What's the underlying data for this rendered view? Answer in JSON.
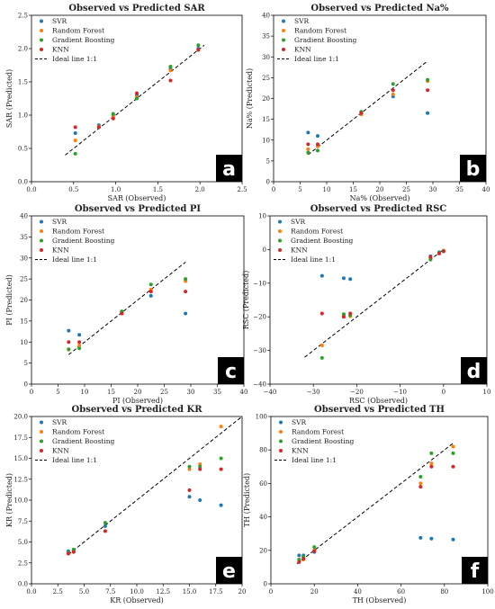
{
  "colors": {
    "SVR": "#1f77b4",
    "Random Forest": "#ff7f0e",
    "Gradient Boosting": "#2ca02c",
    "KNN": "#d62728",
    "ideal": "#000000",
    "panel_label_bg": "#000000"
  },
  "legend": {
    "placement": "top-left",
    "entries": [
      "SVR",
      "Random Forest",
      "Gradient Boosting",
      "KNN",
      "Ideal line 1:1"
    ]
  },
  "chart_data": [
    {
      "type": "scatter",
      "panel": "a",
      "title": "Observed vs Predicted SAR",
      "xlabel": "SAR (Observed)",
      "ylabel": "SAR (Predicted)",
      "xlim": [
        0.0,
        2.5
      ],
      "ylim": [
        0.0,
        2.5
      ],
      "xticks": [
        "0.0",
        "0.5",
        "1.0",
        "1.5",
        "2.0",
        "2.5"
      ],
      "yticks": [
        "0.0",
        "0.5",
        "1.0",
        "1.5",
        "2.0",
        "2.5"
      ],
      "ideal_line": [
        [
          0.4,
          0.4
        ],
        [
          2.05,
          2.05
        ]
      ],
      "grid": false,
      "series": [
        {
          "name": "SVR",
          "points": [
            [
              0.52,
              0.73
            ],
            [
              0.8,
              0.85
            ],
            [
              0.97,
              1.0
            ],
            [
              1.25,
              1.3
            ],
            [
              1.65,
              1.7
            ],
            [
              1.98,
              2.0
            ]
          ]
        },
        {
          "name": "Random Forest",
          "points": [
            [
              0.52,
              0.62
            ],
            [
              0.8,
              0.83
            ],
            [
              0.97,
              0.97
            ],
            [
              1.25,
              1.27
            ],
            [
              1.65,
              1.67
            ],
            [
              1.98,
              1.98
            ]
          ]
        },
        {
          "name": "Gradient Boosting",
          "points": [
            [
              0.52,
              0.42
            ],
            [
              0.8,
              0.82
            ],
            [
              0.97,
              1.02
            ],
            [
              1.25,
              1.25
            ],
            [
              1.65,
              1.73
            ],
            [
              1.98,
              2.05
            ]
          ]
        },
        {
          "name": "KNN",
          "points": [
            [
              0.52,
              0.82
            ],
            [
              0.8,
              0.82
            ],
            [
              0.97,
              0.95
            ],
            [
              1.25,
              1.33
            ],
            [
              1.65,
              1.52
            ],
            [
              1.98,
              1.98
            ]
          ]
        }
      ]
    },
    {
      "type": "scatter",
      "panel": "b",
      "title": "Observed vs Predicted Na%",
      "xlabel": "Na% (Observed)",
      "ylabel": "Na% (Predicted)",
      "xlim": [
        0,
        40
      ],
      "ylim": [
        0,
        40
      ],
      "xticks": [
        "0",
        "5",
        "10",
        "15",
        "20",
        "25",
        "30",
        "35",
        "40"
      ],
      "yticks": [
        "0",
        "5",
        "10",
        "15",
        "20",
        "25",
        "30",
        "35",
        "40"
      ],
      "ideal_line": [
        [
          6.5,
          6.5
        ],
        [
          29,
          29
        ]
      ],
      "grid": false,
      "series": [
        {
          "name": "SVR",
          "points": [
            [
              6.5,
              11.8
            ],
            [
              8.3,
              11.0
            ],
            [
              16.5,
              16.7
            ],
            [
              22.5,
              20.5
            ],
            [
              29,
              16.5
            ]
          ]
        },
        {
          "name": "Random Forest",
          "points": [
            [
              6.5,
              7.8
            ],
            [
              8.3,
              8.5
            ],
            [
              16.5,
              16.2
            ],
            [
              22.5,
              21.0
            ],
            [
              29,
              24.2
            ]
          ]
        },
        {
          "name": "Gradient Boosting",
          "points": [
            [
              6.5,
              7.0
            ],
            [
              8.3,
              7.5
            ],
            [
              16.5,
              16.8
            ],
            [
              22.5,
              23.5
            ],
            [
              29,
              24.5
            ]
          ]
        },
        {
          "name": "KNN",
          "points": [
            [
              6.5,
              9.0
            ],
            [
              8.3,
              9.0
            ],
            [
              16.5,
              16.5
            ],
            [
              22.5,
              22.0
            ],
            [
              29,
              22.0
            ]
          ]
        }
      ]
    },
    {
      "type": "scatter",
      "panel": "c",
      "title": "Observed vs Predicted PI",
      "xlabel": "PI (Observed)",
      "ylabel": "PI (Predicted)",
      "xlim": [
        0,
        40
      ],
      "ylim": [
        0,
        40
      ],
      "xticks": [
        "0",
        "5",
        "10",
        "15",
        "20",
        "25",
        "30",
        "35",
        "40"
      ],
      "yticks": [
        "0",
        "5",
        "10",
        "15",
        "20",
        "25",
        "30",
        "35",
        "40"
      ],
      "ideal_line": [
        [
          7,
          7
        ],
        [
          29,
          29
        ]
      ],
      "grid": false,
      "series": [
        {
          "name": "SVR",
          "points": [
            [
              7,
              12.7
            ],
            [
              9,
              11.7
            ],
            [
              17,
              17.0
            ],
            [
              22.5,
              21.0
            ],
            [
              29,
              16.8
            ]
          ]
        },
        {
          "name": "Random Forest",
          "points": [
            [
              7,
              8.2
            ],
            [
              9,
              9.2
            ],
            [
              17,
              16.8
            ],
            [
              22.5,
              22.5
            ],
            [
              29,
              24.5
            ]
          ]
        },
        {
          "name": "Gradient Boosting",
          "points": [
            [
              7,
              8.3
            ],
            [
              9,
              8.5
            ],
            [
              17,
              17.3
            ],
            [
              22.5,
              23.7
            ],
            [
              29,
              25.0
            ]
          ]
        },
        {
          "name": "KNN",
          "points": [
            [
              7,
              10.0
            ],
            [
              9,
              10.0
            ],
            [
              17,
              16.8
            ],
            [
              22.5,
              22.0
            ],
            [
              29,
              22.0
            ]
          ]
        }
      ]
    },
    {
      "type": "scatter",
      "panel": "d",
      "title": "Observed vs Predicted RSC",
      "xlabel": "RSC (Observed)",
      "ylabel": "RSC (Predicted)",
      "xlim": [
        -40,
        10
      ],
      "ylim": [
        -40,
        10
      ],
      "xticks": [
        "−40",
        "−30",
        "−20",
        "−10",
        "0",
        "10"
      ],
      "yticks": [
        "−40",
        "−30",
        "−20",
        "−10",
        "0",
        "10"
      ],
      "ideal_line": [
        [
          -32,
          -32
        ],
        [
          0,
          0
        ]
      ],
      "grid": false,
      "series": [
        {
          "name": "SVR",
          "points": [
            [
              -28,
              -7.8
            ],
            [
              -23,
              -8.5
            ],
            [
              -21.5,
              -8.8
            ],
            [
              -3,
              -2.0
            ],
            [
              -1,
              -0.8
            ],
            [
              0,
              -0.5
            ]
          ]
        },
        {
          "name": "Random Forest",
          "points": [
            [
              -28,
              -28.5
            ],
            [
              -23,
              -19.5
            ],
            [
              -21.5,
              -19.8
            ],
            [
              -3,
              -2.5
            ],
            [
              -1,
              -1.0
            ],
            [
              0,
              -0.3
            ]
          ]
        },
        {
          "name": "Gradient Boosting",
          "points": [
            [
              -28,
              -32.2
            ],
            [
              -23,
              -19.2
            ],
            [
              -21.5,
              -19.5
            ],
            [
              -3,
              -3.0
            ],
            [
              -1,
              -1.0
            ],
            [
              0,
              -0.5
            ]
          ]
        },
        {
          "name": "KNN",
          "points": [
            [
              -28,
              -19.0
            ],
            [
              -23,
              -20.0
            ],
            [
              -21.5,
              -19.0
            ],
            [
              -3,
              -2.2
            ],
            [
              -1,
              -1.2
            ],
            [
              0,
              -0.5
            ]
          ]
        }
      ]
    },
    {
      "type": "scatter",
      "panel": "e",
      "title": "Observed vs Predicted KR",
      "xlabel": "KR (Observed)",
      "ylabel": "KR (Predicted)",
      "xlim": [
        0,
        20
      ],
      "ylim": [
        0,
        20
      ],
      "xticks": [
        "0.0",
        "2.5",
        "5.0",
        "7.5",
        "10.0",
        "12.5",
        "15.0",
        "17.5",
        "20"
      ],
      "yticks": [
        "0.0",
        "2.5",
        "5.0",
        "7.5",
        "10.0",
        "12.5",
        "15.0",
        "17.5",
        "20.0"
      ],
      "ideal_line": [
        [
          3.5,
          3.5
        ],
        [
          20,
          20
        ]
      ],
      "grid": false,
      "series": [
        {
          "name": "SVR",
          "points": [
            [
              3.5,
              3.9
            ],
            [
              4,
              4.0
            ],
            [
              7,
              6.9
            ],
            [
              15,
              10.4
            ],
            [
              16,
              10.0
            ],
            [
              18,
              9.4
            ]
          ]
        },
        {
          "name": "Random Forest",
          "points": [
            [
              3.5,
              3.7
            ],
            [
              4,
              3.9
            ],
            [
              7,
              6.3
            ],
            [
              15,
              13.7
            ],
            [
              16,
              14.3
            ],
            [
              18,
              18.8
            ]
          ]
        },
        {
          "name": "Gradient Boosting",
          "points": [
            [
              3.5,
              3.7
            ],
            [
              4,
              4.1
            ],
            [
              7,
              7.3
            ],
            [
              15,
              14.0
            ],
            [
              16,
              14.0
            ],
            [
              18,
              15.0
            ]
          ]
        },
        {
          "name": "KNN",
          "points": [
            [
              3.5,
              3.6
            ],
            [
              4,
              3.8
            ],
            [
              7,
              6.3
            ],
            [
              15,
              11.2
            ],
            [
              16,
              13.7
            ],
            [
              18,
              13.7
            ]
          ]
        }
      ]
    },
    {
      "type": "scatter",
      "panel": "f",
      "title": "Observed vs Predicted TH",
      "xlabel": "TH (Observed)",
      "ylabel": "TH (Predicted)",
      "xlim": [
        0,
        100
      ],
      "ylim": [
        0,
        100
      ],
      "xticks": [
        "0",
        "20",
        "40",
        "60",
        "80",
        "100"
      ],
      "yticks": [
        "0",
        "20",
        "40",
        "60",
        "80",
        "100"
      ],
      "ideal_line": [
        [
          12,
          12
        ],
        [
          84,
          84
        ]
      ],
      "grid": false,
      "series": [
        {
          "name": "SVR",
          "points": [
            [
              13,
              17.0
            ],
            [
              15,
              17.0
            ],
            [
              20,
              19.0
            ],
            [
              69,
              27.5
            ],
            [
              74,
              27.0
            ],
            [
              84,
              26.5
            ]
          ]
        },
        {
          "name": "Random Forest",
          "points": [
            [
              13,
              13.5
            ],
            [
              15,
              14.5
            ],
            [
              20,
              20.0
            ],
            [
              69,
              60.0
            ],
            [
              74,
              72.0
            ],
            [
              84,
              82.0
            ]
          ]
        },
        {
          "name": "Gradient Boosting",
          "points": [
            [
              13,
              14.5
            ],
            [
              15,
              16.0
            ],
            [
              20,
              22.0
            ],
            [
              69,
              64.0
            ],
            [
              74,
              78.0
            ],
            [
              84,
              78.0
            ]
          ]
        },
        {
          "name": "KNN",
          "points": [
            [
              13,
              13.0
            ],
            [
              15,
              15.0
            ],
            [
              20,
              19.5
            ],
            [
              69,
              58.0
            ],
            [
              74,
              70.0
            ],
            [
              84,
              70.0
            ]
          ]
        }
      ]
    }
  ]
}
